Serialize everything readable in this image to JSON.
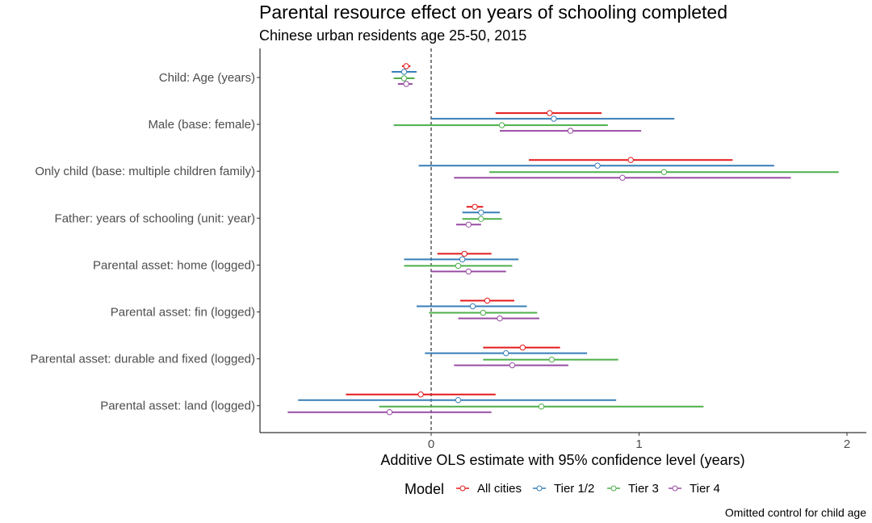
{
  "chart_data": {
    "type": "errorbar",
    "title": "Parental resource effect on years of schooling completed",
    "subtitle": "Chinese urban residents age 25-50, 2015",
    "xlabel": "Additive OLS estimate with 95% confidence level (years)",
    "caption": "Omitted control for child age",
    "xlim": [
      -0.82,
      2.08
    ],
    "x_ticks": [
      0,
      1,
      2
    ],
    "reference_line": {
      "x": 0,
      "style": "dashed"
    },
    "grid": false,
    "legend": {
      "title": "Model",
      "position": "bottom"
    },
    "categories": [
      "Child: Age (years)",
      "Male (base: female)",
      "Only child (base: multiple children family)",
      "Father: years of schooling (unit: year)",
      "Parental asset: home (logged)",
      "Parental asset: fin (logged)",
      "Parental asset: durable and fixed (logged)",
      "Parental asset: land (logged)"
    ],
    "series": [
      {
        "name": "All cities",
        "color": "#e41a1c",
        "estimates": [
          -0.12,
          0.57,
          0.96,
          0.21,
          0.16,
          0.27,
          0.44,
          -0.05
        ],
        "lower": [
          -0.14,
          0.31,
          0.47,
          0.17,
          0.03,
          0.14,
          0.25,
          -0.41
        ],
        "upper": [
          -0.1,
          0.82,
          1.45,
          0.25,
          0.29,
          0.4,
          0.62,
          0.31
        ]
      },
      {
        "name": "Tier 1/2",
        "color": "#377eb8",
        "estimates": [
          -0.13,
          0.59,
          0.8,
          0.24,
          0.15,
          0.2,
          0.36,
          0.13
        ],
        "lower": [
          -0.19,
          0.0,
          -0.06,
          0.15,
          -0.13,
          -0.07,
          -0.03,
          -0.64
        ],
        "upper": [
          -0.07,
          1.17,
          1.65,
          0.33,
          0.42,
          0.46,
          0.75,
          0.89
        ]
      },
      {
        "name": "Tier 3",
        "color": "#4daf4a",
        "estimates": [
          -0.13,
          0.34,
          1.12,
          0.24,
          0.13,
          0.25,
          0.58,
          0.53
        ],
        "lower": [
          -0.18,
          -0.18,
          0.28,
          0.15,
          -0.13,
          -0.01,
          0.25,
          -0.25
        ],
        "upper": [
          -0.08,
          0.85,
          1.96,
          0.34,
          0.39,
          0.51,
          0.9,
          1.31
        ]
      },
      {
        "name": "Tier 4",
        "color": "#984ea3",
        "estimates": [
          -0.12,
          0.67,
          0.92,
          0.18,
          0.18,
          0.33,
          0.39,
          -0.2
        ],
        "lower": [
          -0.16,
          0.33,
          0.11,
          0.12,
          0.0,
          0.13,
          0.11,
          -0.69
        ],
        "upper": [
          -0.09,
          1.01,
          1.73,
          0.24,
          0.36,
          0.52,
          0.66,
          0.29
        ]
      }
    ]
  }
}
